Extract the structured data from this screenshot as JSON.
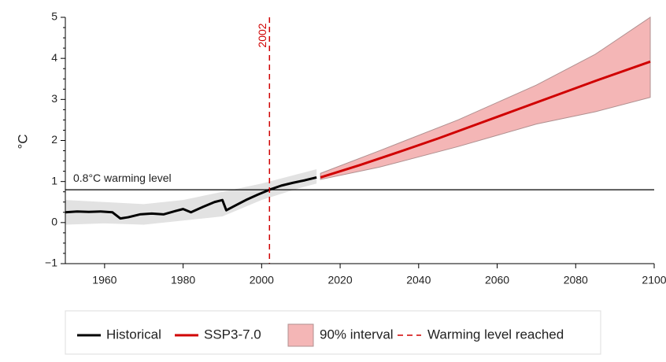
{
  "chart_data": {
    "type": "line",
    "y_label": "°C",
    "xlim": [
      1950,
      2100
    ],
    "xticks": [
      1960,
      1980,
      2000,
      2020,
      2040,
      2060,
      2080,
      2100
    ],
    "ylim": [
      -1,
      5
    ],
    "yticks": [
      {
        "value": -1,
        "label": "−1"
      },
      0,
      1,
      2,
      3,
      4,
      5
    ],
    "hline": {
      "value": 0.8,
      "label": "0.8°C warming level",
      "color": "#000000"
    },
    "vline": {
      "value": 2002,
      "name": "Warming level reached",
      "color": "#d00000"
    },
    "series": [
      {
        "name": "Historical",
        "color": "#000000",
        "x": [
          1950,
          1953,
          1956,
          1959,
          1962,
          1964,
          1966,
          1969,
          1972,
          1975,
          1978,
          1980,
          1982,
          1985,
          1988,
          1990,
          1991,
          1993,
          1996,
          1999,
          2002,
          2005,
          2008,
          2011,
          2014
        ],
        "values": [
          0.25,
          0.27,
          0.26,
          0.27,
          0.25,
          0.1,
          0.13,
          0.2,
          0.22,
          0.2,
          0.28,
          0.33,
          0.25,
          0.38,
          0.5,
          0.55,
          0.3,
          0.4,
          0.55,
          0.68,
          0.8,
          0.9,
          0.97,
          1.03,
          1.1
        ]
      },
      {
        "name": "SSP3-7.0",
        "color": "#d00000",
        "x": [
          2015,
          2025,
          2035,
          2045,
          2055,
          2065,
          2075,
          2085,
          2099
        ],
        "values": [
          1.1,
          1.4,
          1.72,
          2.05,
          2.4,
          2.75,
          3.1,
          3.45,
          3.92
        ]
      }
    ],
    "bands": [
      {
        "color": "#e2e2e2",
        "x": [
          1950,
          1960,
          1970,
          1980,
          1990,
          2000,
          2010,
          2014
        ],
        "lower": [
          -0.05,
          -0.02,
          -0.05,
          0.05,
          0.15,
          0.55,
          0.85,
          0.95
        ],
        "upper": [
          0.55,
          0.5,
          0.45,
          0.55,
          0.75,
          0.95,
          1.2,
          1.3
        ]
      },
      {
        "name": "90% interval",
        "color": "#f4b6b6",
        "x": [
          2015,
          2030,
          2050,
          2070,
          2085,
          2099
        ],
        "lower": [
          1.05,
          1.35,
          1.85,
          2.4,
          2.7,
          3.05
        ],
        "upper": [
          1.2,
          1.75,
          2.5,
          3.35,
          4.1,
          5.0
        ]
      }
    ]
  }
}
